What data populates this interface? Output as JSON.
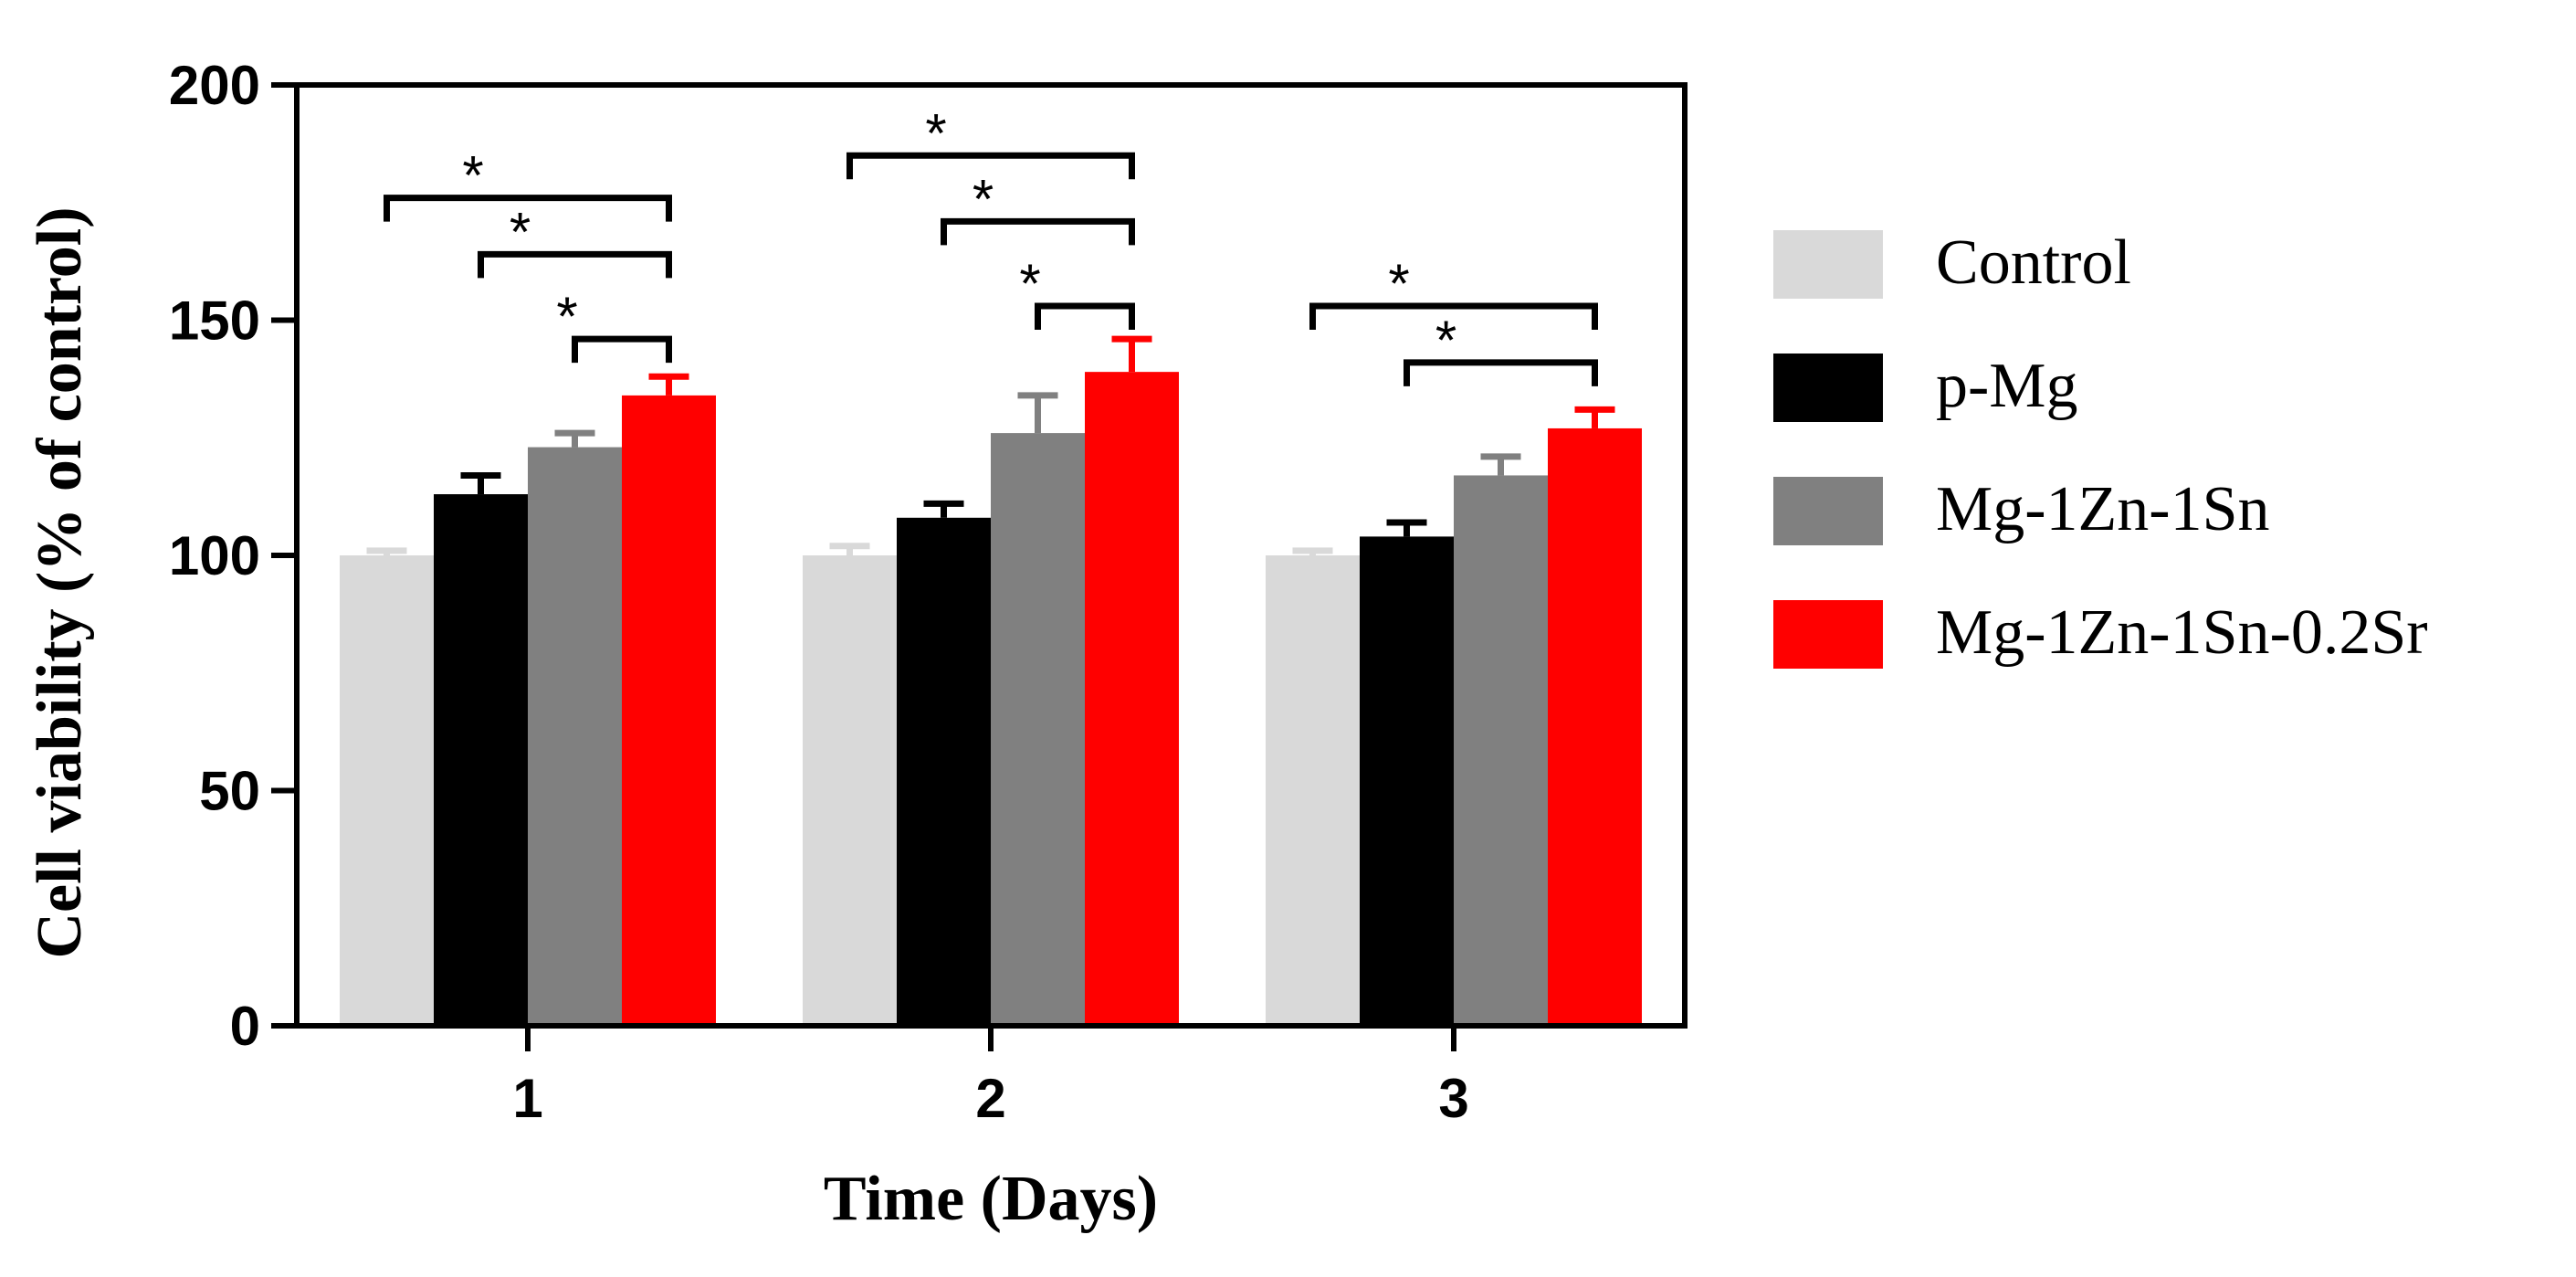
{
  "chart_data": {
    "type": "bar",
    "xlabel": "Time (Days)",
    "ylabel": "Cell viability (% of control)",
    "ylim": [
      0,
      200
    ],
    "yticks": [
      0,
      50,
      100,
      150,
      200
    ],
    "categories": [
      "1",
      "2",
      "3"
    ],
    "series": [
      {
        "name": "Control",
        "color": "#d9d9d9",
        "values": [
          100,
          100,
          100
        ],
        "errors": [
          1,
          2,
          1
        ]
      },
      {
        "name": "p-Mg",
        "color": "#000000",
        "values": [
          113,
          108,
          104
        ],
        "errors": [
          4,
          3,
          3
        ]
      },
      {
        "name": "Mg-1Zn-1Sn",
        "color": "#808080",
        "values": [
          123,
          126,
          117
        ],
        "errors": [
          3,
          8,
          4
        ]
      },
      {
        "name": "Mg-1Zn-1Sn-0.2Sr",
        "color": "#ff0000",
        "values": [
          134,
          139,
          127
        ],
        "errors": [
          4,
          7,
          4
        ]
      }
    ],
    "significance": [
      {
        "category": 0,
        "from": 0,
        "to": 3,
        "label": "*",
        "y": 176
      },
      {
        "category": 0,
        "from": 1,
        "to": 3,
        "label": "*",
        "y": 164
      },
      {
        "category": 0,
        "from": 2,
        "to": 3,
        "label": "*",
        "y": 146
      },
      {
        "category": 1,
        "from": 0,
        "to": 3,
        "label": "*",
        "y": 185
      },
      {
        "category": 1,
        "from": 1,
        "to": 3,
        "label": "*",
        "y": 171
      },
      {
        "category": 1,
        "from": 2,
        "to": 3,
        "label": "*",
        "y": 153
      },
      {
        "category": 2,
        "from": 0,
        "to": 3,
        "label": "*",
        "y": 153
      },
      {
        "category": 2,
        "from": 1,
        "to": 3,
        "label": "*",
        "y": 141
      }
    ]
  }
}
